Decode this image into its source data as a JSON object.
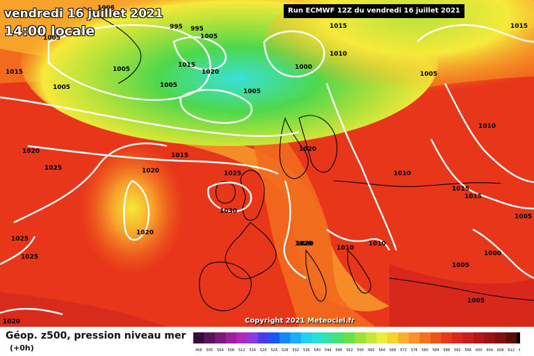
{
  "header": {
    "date_title": "vendredi 16 juillet 2021",
    "time_title": "14:00 locale",
    "run_info": "Run ECMWF 12Z du vendredi 16 juillet 2021"
  },
  "footer": {
    "parameter": "Géop. z500, pression niveau mer",
    "lead_time": "(+0h)",
    "copyright": "Copyright 2021 Meteociel.fr"
  },
  "colors": {
    "background_hot": "#e8361a",
    "warm": "#f26a1e",
    "orange": "#f7a22a",
    "yellow": "#f6ea3a",
    "green_yellow": "#b8e23a",
    "green": "#4ed84c",
    "cyan": "#38e0d8",
    "dark_red": "#c81e1e",
    "isobar": "#ffffff",
    "coast": "#000000"
  },
  "isobar_labels": [
    {
      "text": "1005"
    },
    {
      "text": "995"
    },
    {
      "text": "995"
    },
    {
      "text": "1005"
    },
    {
      "text": "1015"
    },
    {
      "text": "1005"
    },
    {
      "text": "1015"
    },
    {
      "text": "1020"
    },
    {
      "text": "1000"
    },
    {
      "text": "1010"
    },
    {
      "text": "1015"
    },
    {
      "text": "1005"
    },
    {
      "text": "1015"
    },
    {
      "text": "1005"
    },
    {
      "text": "1005"
    },
    {
      "text": "1005"
    },
    {
      "text": "1005"
    },
    {
      "text": "1010"
    },
    {
      "text": "1020"
    },
    {
      "text": "1015"
    },
    {
      "text": "1020"
    },
    {
      "text": "1025"
    },
    {
      "text": "1020"
    },
    {
      "text": "1025"
    },
    {
      "text": "1020"
    },
    {
      "text": "1010"
    },
    {
      "text": "1015"
    },
    {
      "text": "1015"
    },
    {
      "text": "1030"
    },
    {
      "text": "1005"
    },
    {
      "text": "1020"
    },
    {
      "text": "1025"
    },
    {
      "text": "1025"
    },
    {
      "text": "1020"
    },
    {
      "text": "1010"
    },
    {
      "text": "1010"
    },
    {
      "text": "1000"
    },
    {
      "text": "1005"
    },
    {
      "text": "1005"
    },
    {
      "text": "1020"
    }
  ],
  "scale": {
    "values": [
      "456",
      "500",
      "504",
      "508",
      "512",
      "516",
      "520",
      "524",
      "528",
      "532",
      "536",
      "540",
      "544",
      "548",
      "552",
      "556",
      "560",
      "564",
      "568",
      "572",
      "576",
      "580",
      "584",
      "588",
      "592",
      "596",
      "600",
      "604",
      "608",
      "612",
      "616"
    ],
    "colors": [
      "#3a0a3a",
      "#5a145a",
      "#7a1a7a",
      "#9a22a0",
      "#b02ab8",
      "#8a3ae0",
      "#4a3ae8",
      "#1a56f0",
      "#1a86f8",
      "#1ab0f8",
      "#22d0f0",
      "#2ae0d0",
      "#38e0a8",
      "#48e070",
      "#6ae048",
      "#9ae23a",
      "#c4e83a",
      "#eaee3a",
      "#f6d430",
      "#f7b02a",
      "#f7922a",
      "#f2721e",
      "#ec541a",
      "#e83a1a",
      "#d82a1a",
      "#c81e1e",
      "#b01818",
      "#981414",
      "#7e1010",
      "#5e0a0a",
      "#000000"
    ]
  }
}
